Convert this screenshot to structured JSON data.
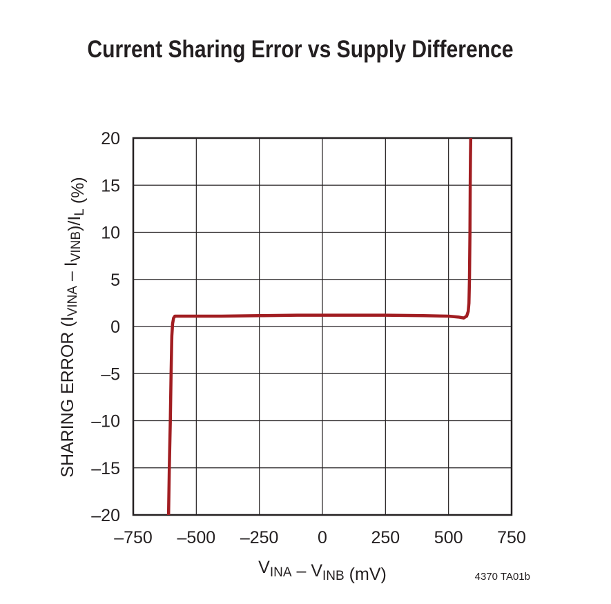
{
  "chart_data": {
    "type": "line",
    "title": "Current Sharing Error vs Supply Difference",
    "xlabel": {
      "parts": [
        {
          "t": "V"
        },
        {
          "t": "INA",
          "sub": true
        },
        {
          "t": " – V"
        },
        {
          "t": "INB",
          "sub": true
        },
        {
          "t": " (mV)"
        }
      ]
    },
    "ylabel": {
      "parts": [
        {
          "t": "SHARING ERROR (I"
        },
        {
          "t": "VINA",
          "sub": true
        },
        {
          "t": " – I"
        },
        {
          "t": "VINB",
          "sub": true
        },
        {
          "t": ")/I"
        },
        {
          "t": "L",
          "sub": true
        },
        {
          "t": " (%)"
        }
      ]
    },
    "xlim": [
      -750,
      750
    ],
    "ylim": [
      -20,
      20
    ],
    "xticks": [
      -750,
      -500,
      -250,
      0,
      250,
      500,
      750
    ],
    "xtick_labels": [
      "–750",
      "–500",
      "–250",
      "0",
      "250",
      "500",
      "750"
    ],
    "yticks": [
      20,
      15,
      10,
      5,
      0,
      -5,
      -10,
      -15,
      -20
    ],
    "ytick_labels": [
      "20",
      "15",
      "10",
      "5",
      "0",
      "–5",
      "–10",
      "–15",
      "–20"
    ],
    "grid": true,
    "figure_id": "4370 TA01b",
    "series": [
      {
        "color": "#a11d21",
        "x": [
          -610,
          -607,
          -603,
          -600,
          -597,
          -594,
          -590,
          -585,
          -570,
          -500,
          -400,
          -250,
          -100,
          0,
          100,
          250,
          400,
          500,
          540,
          560,
          572,
          578,
          581,
          583,
          585,
          586,
          587,
          588
        ],
        "y": [
          -20,
          -15,
          -10,
          -5,
          -1,
          0.3,
          0.9,
          1.1,
          1.1,
          1.1,
          1.1,
          1.15,
          1.2,
          1.2,
          1.2,
          1.2,
          1.15,
          1.1,
          1.0,
          0.9,
          1.1,
          1.6,
          2.5,
          5,
          10,
          15,
          18,
          20
        ]
      }
    ]
  }
}
